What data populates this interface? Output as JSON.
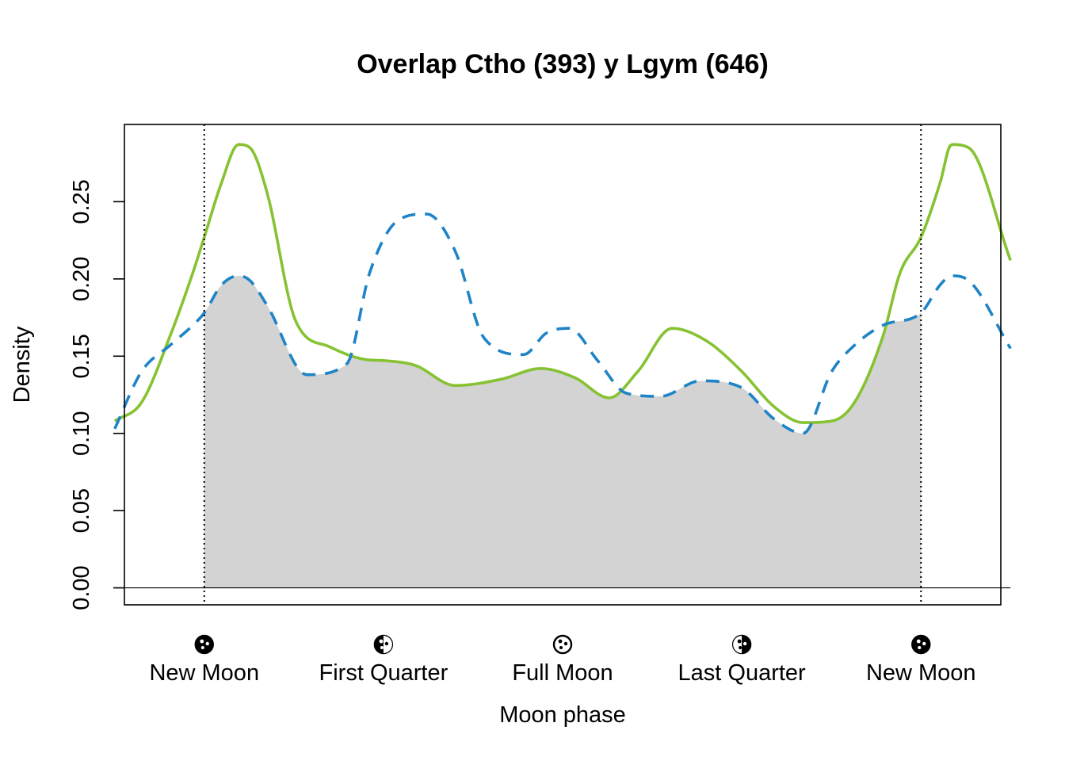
{
  "chart_data": {
    "type": "line",
    "title": "Overlap Ctho (393) y Lgym (646)",
    "xlabel": "Moon phase",
    "ylabel": "Density",
    "xlim": [
      -0.7,
      6.983
    ],
    "ylim": [
      -0.011,
      0.3
    ],
    "yticks": [
      0,
      0.05,
      0.1,
      0.15,
      0.2,
      0.25
    ],
    "ytick_labels": [
      "0.00",
      "0.05",
      "0.10",
      "0.15",
      "0.20",
      "0.25"
    ],
    "xticks": [
      0,
      1.5708,
      3.1416,
      4.7124,
      6.2832
    ],
    "xtick_labels": [
      "New Moon",
      "First Quarter",
      "Full Moon",
      "Last Quarter",
      "New Moon"
    ],
    "phase_icons": [
      "new-moon-icon",
      "first-quarter-icon",
      "full-moon-icon",
      "last-quarter-icon",
      "new-moon-icon"
    ],
    "vlines": [
      0,
      6.2832
    ],
    "grid": false,
    "series": [
      {
        "color": "#86C232",
        "dash": "solid",
        "x": [
          -0.785,
          -0.55,
          -0.3,
          -0.1,
          0,
          0.15,
          0.3,
          0.4,
          0.55,
          0.8,
          1.1,
          1.4,
          1.6,
          1.85,
          2.2,
          2.6,
          2.95,
          3.25,
          3.55,
          3.8,
          4.1,
          4.4,
          4.7,
          5.0,
          5.25,
          5.5,
          5.7,
          5.95,
          6.1,
          6.2832,
          6.45,
          6.55,
          6.7,
          7.068
        ],
        "y": [
          0.108,
          0.12,
          0.163,
          0.204,
          0.227,
          0.262,
          0.287,
          0.285,
          0.256,
          0.173,
          0.156,
          0.148,
          0.147,
          0.144,
          0.131,
          0.135,
          0.142,
          0.136,
          0.123,
          0.14,
          0.168,
          0.16,
          0.141,
          0.117,
          0.107,
          0.108,
          0.12,
          0.163,
          0.204,
          0.227,
          0.262,
          0.287,
          0.285,
          0.212
        ]
      },
      {
        "color": "#1F84C6",
        "dash": "dashed",
        "x": [
          -0.785,
          -0.55,
          -0.3,
          -0.1,
          0,
          0.15,
          0.3,
          0.4,
          0.55,
          0.9,
          1.25,
          1.45,
          1.7,
          1.95,
          2.2,
          2.45,
          2.8,
          3.0,
          3.2,
          3.45,
          3.7,
          4.0,
          4.35,
          4.7,
          5.0,
          5.25,
          5.5,
          5.7,
          5.95,
          6.2832,
          6.45,
          6.55,
          6.7,
          7.068
        ],
        "y": [
          0.103,
          0.14,
          0.157,
          0.17,
          0.178,
          0.196,
          0.202,
          0.199,
          0.183,
          0.138,
          0.145,
          0.204,
          0.238,
          0.242,
          0.218,
          0.162,
          0.151,
          0.165,
          0.168,
          0.147,
          0.126,
          0.124,
          0.134,
          0.13,
          0.109,
          0.1,
          0.14,
          0.157,
          0.17,
          0.178,
          0.196,
          0.202,
          0.199,
          0.155
        ]
      }
    ],
    "overlap_fill": {
      "from": 0,
      "to": 6.2832,
      "color": "#D3D3D3"
    }
  }
}
